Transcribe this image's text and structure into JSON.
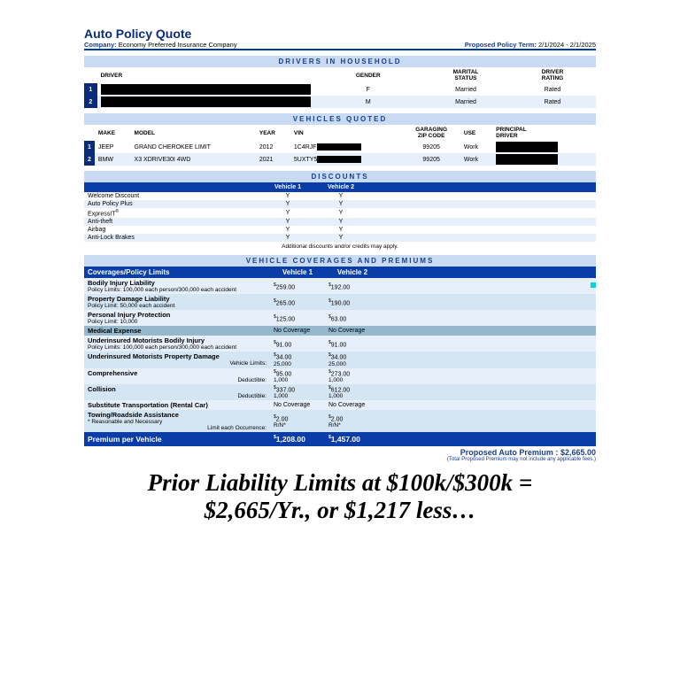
{
  "title": {
    "text": "Auto Policy Quote",
    "fontsize": 14,
    "color": "#0a2a7a"
  },
  "company": {
    "label": "Company:",
    "value": "Economy Preferred Insurance Company"
  },
  "term": {
    "label": "Proposed Policy Term:",
    "value": "2/1/2024 - 2/1/2025"
  },
  "drivers": {
    "band": "DRIVERS IN HOUSEHOLD",
    "cols": {
      "driver": "DRIVER",
      "gender": "GENDER",
      "marital": "MARITAL\nSTATUS",
      "rating": "DRIVER\nRATING"
    },
    "rows": [
      {
        "n": "1",
        "gender": "F",
        "marital": "Married",
        "rating": "Rated"
      },
      {
        "n": "2",
        "gender": "M",
        "marital": "Married",
        "rating": "Rated"
      }
    ]
  },
  "vehicles": {
    "band": "VEHICLES QUOTED",
    "cols": {
      "make": "MAKE",
      "model": "MODEL",
      "year": "YEAR",
      "vin": "VIN",
      "zip": "GARAGING\nZIP CODE",
      "use": "USE",
      "pd": "PRINCIPAL\nDRIVER"
    },
    "rows": [
      {
        "n": "1",
        "make": "JEEP",
        "model": "GRAND CHEROKEE LIMIT",
        "year": "2012",
        "vin": "1C4RJF",
        "zip": "99205",
        "use": "Work"
      },
      {
        "n": "2",
        "make": "BMW",
        "model": "X3 XDRIVE30I 4WD",
        "year": "2021",
        "vin": "5UXTY5",
        "zip": "99205",
        "use": "Work"
      }
    ]
  },
  "discounts": {
    "band": "DISCOUNTS",
    "v1": "Vehicle 1",
    "v2": "Vehicle 2",
    "items": [
      {
        "name": "Welcome Discount",
        "v1": "Y",
        "v2": "Y"
      },
      {
        "name": "Auto Policy Plus",
        "v1": "Y",
        "v2": "Y"
      },
      {
        "name": "ExpressIT",
        "sup": "®",
        "v1": "Y",
        "v2": "Y"
      },
      {
        "name": "Anti-theft",
        "v1": "Y",
        "v2": "Y"
      },
      {
        "name": "Airbag",
        "v1": "Y",
        "v2": "Y"
      },
      {
        "name": "Anti-Lock Brakes",
        "v1": "Y",
        "v2": "Y"
      }
    ],
    "note": "Additional discounts and/or credits may apply."
  },
  "coverages": {
    "band": "VEHICLE COVERAGES AND PREMIUMS",
    "hdr": {
      "label": "Coverages/Policy Limits",
      "v1": "Vehicle 1",
      "v2": "Vehicle 2"
    },
    "rows": [
      {
        "name": "Bodily Injury Liability",
        "sub": "Policy Limits: 100,000 each person/300,000 each accident",
        "v1": "$259.00",
        "v2": "$192.00",
        "cls": "a"
      },
      {
        "name": "Property Damage Liability",
        "sub": "Policy Limit: 50,000 each accident",
        "v1": "$265.00",
        "v2": "$190.00",
        "cls": "b"
      },
      {
        "name": "Personal Injury Protection",
        "sub": "Policy Limit: 10,000",
        "v1": "$125.00",
        "v2": "$63.00",
        "cls": "a"
      },
      {
        "name": "Medical Expense",
        "v1": "No Coverage",
        "v2": "No Coverage",
        "cls": "med"
      },
      {
        "name": "Underinsured Motorists Bodily Injury",
        "sub": "Policy Limits: 100,000 each person/300,000 each accident",
        "v1": "$91.00",
        "v2": "$91.00",
        "cls": "a"
      },
      {
        "name": "Underinsured Motorists Property Damage",
        "subr": "Vehicle Limits:",
        "v1": "$34.00",
        "v1s": "25,000",
        "v2": "$34.00",
        "v2s": "25,000",
        "cls": "b"
      },
      {
        "name": "Comprehensive",
        "subr": "Deductible:",
        "v1": "$95.00",
        "v1s": "1,000",
        "v2": "$273.00",
        "v2s": "1,000",
        "cls": "a"
      },
      {
        "name": "Collision",
        "subr": "Deductible:",
        "v1": "$337.00",
        "v1s": "1,000",
        "v2": "$612.00",
        "v2s": "1,000",
        "cls": "b"
      },
      {
        "name": "Substitute Transportation (Rental Car)",
        "v1": "No Coverage",
        "v2": "No Coverage",
        "cls": "a"
      },
      {
        "name": "Towing/Roadside Assistance",
        "sub": "* Reasonable and Necessary",
        "subr": "Limit each Occurrence:",
        "v1": "$2.00",
        "v1s": "R/N*",
        "v2": "$2.00",
        "v2s": "R/N*",
        "cls": "b"
      }
    ],
    "premium": {
      "label": "Premium per Vehicle",
      "v1": "$1,208.00",
      "v2": "$1,457.00"
    },
    "proposed": {
      "label": "Proposed Auto Premium :",
      "value": "$2,665.00",
      "note": "(Total Proposed Premium may not include any applicable fees.)"
    }
  },
  "caption": {
    "line1": "Prior Liability Limits at $100k/$300k =",
    "line2": "$2,665/Yr., or $1,217 less…",
    "fontsize": 27
  },
  "colors": {
    "darkblue": "#0a3da8",
    "navy": "#0a2a7a",
    "bandblue": "#c8dbf2",
    "rowlight": "#e6effa",
    "rowalt": "#d4e5f4",
    "medexp": "#95b8cc"
  }
}
